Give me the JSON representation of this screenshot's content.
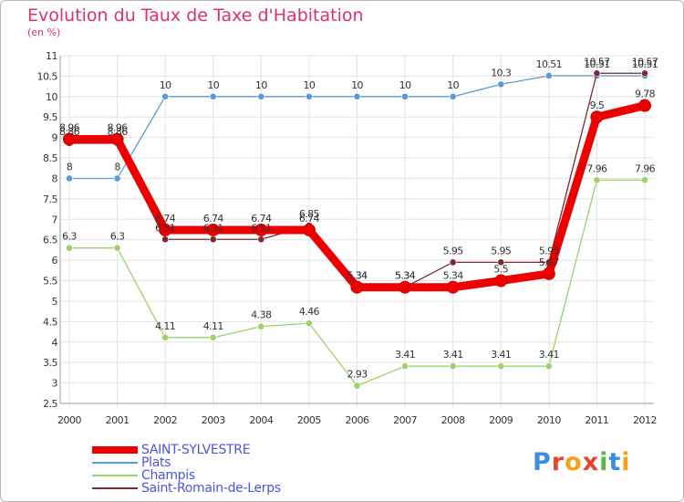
{
  "header": {
    "title": "Evolution du Taux de Taxe d'Habitation",
    "unit": "(en %)"
  },
  "logo": {
    "letters": [
      "P",
      "r",
      "o",
      "x",
      "i",
      "t",
      "i"
    ],
    "colors": [
      "#3a8ee6",
      "#e8432e",
      "#f3a21c",
      "#e8432e",
      "#58b947",
      "#3a8ee6",
      "#f3a21c"
    ]
  },
  "chart_data": {
    "type": "line",
    "title": "Evolution du Taux de Taxe d'Habitation",
    "ylabel": "(en %)",
    "xlabel": "",
    "x": [
      "2000",
      "2001",
      "2002",
      "2003",
      "2004",
      "2005",
      "2006",
      "2007",
      "2008",
      "2009",
      "2010",
      "2011",
      "2012"
    ],
    "ylim": [
      2.5,
      11
    ],
    "yticks": [
      2.5,
      3,
      3.5,
      4,
      4.5,
      5,
      5.5,
      6,
      6.5,
      7,
      7.5,
      8,
      8.5,
      9,
      9.5,
      10,
      10.5,
      11
    ],
    "ytick_labels": [
      "2.5",
      "3",
      "3.5",
      "4",
      "4.5",
      "5",
      "5.5",
      "6",
      "6.5",
      "7",
      "7.5",
      "8",
      "8.5",
      "9",
      "9.5",
      "10",
      "10.5",
      "11"
    ],
    "grid": true,
    "legend_position": "bottom-left",
    "series": [
      {
        "name": "Saint-Romain-de-Lerps",
        "color": "#7a2a2e",
        "values": [
          8.86,
          8.86,
          6.51,
          6.51,
          6.51,
          6.85,
          5.34,
          5.34,
          5.95,
          5.95,
          5.95,
          10.57,
          10.57
        ],
        "labels": [
          "8.86",
          "8.86",
          "6.51",
          "6.51",
          "6.51",
          "6.85",
          "5.34",
          "5.34",
          "5.95",
          "5.95",
          "5.95",
          "10.57",
          "10.57"
        ]
      },
      {
        "name": "Plats",
        "color": "#5b9bd5",
        "values": [
          8,
          8,
          10,
          10,
          10,
          10,
          10,
          10,
          10,
          10.3,
          10.51,
          10.51,
          10.51
        ],
        "labels": [
          "8",
          "8",
          "10",
          "10",
          "10",
          "10",
          "10",
          "10",
          "10",
          "10.3",
          "10.51",
          "10.51",
          "10.51"
        ]
      },
      {
        "name": "Champis",
        "color": "#9bd36a",
        "values": [
          6.3,
          6.3,
          4.11,
          4.11,
          4.38,
          4.46,
          2.93,
          3.41,
          3.41,
          3.41,
          3.41,
          7.96,
          7.96
        ],
        "labels": [
          "6.3",
          "6.3",
          "4.11",
          "4.11",
          "4.38",
          "4.46",
          "2.93",
          "3.41",
          "3.41",
          "3.41",
          "3.41",
          "7.96",
          "7.96"
        ]
      },
      {
        "name": "SAINT-SYLVESTRE",
        "color": "#ee0000",
        "values": [
          8.96,
          8.96,
          6.74,
          6.74,
          6.74,
          6.74,
          5.34,
          5.34,
          5.34,
          5.5,
          5.67,
          9.5,
          9.78
        ],
        "labels": [
          "8.96",
          "8.96",
          "6.74",
          "6.74",
          "6.74",
          "6.74",
          "5.34",
          "5.34",
          "5.34",
          "5.5",
          "5.67",
          "9.5",
          "9.78"
        ]
      }
    ],
    "legend": [
      "SAINT-SYLVESTRE",
      "Plats",
      "Champis",
      "Saint-Romain-de-Lerps"
    ]
  }
}
